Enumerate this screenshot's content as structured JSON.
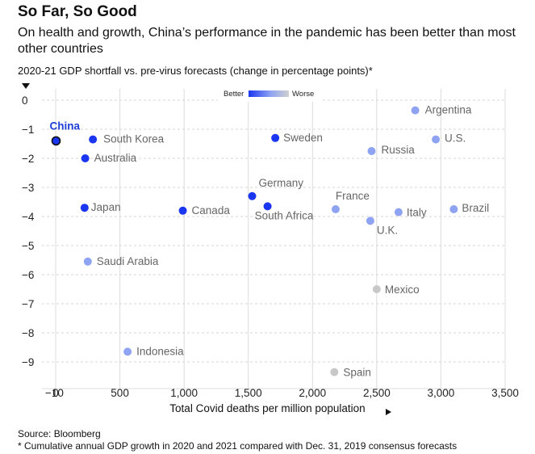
{
  "title": "So Far, So Good",
  "subtitle": "On health and growth, China’s performance in the pandemic has been better than most other countries",
  "source": "Source: Bloomberg",
  "footnote": "* Cumulative annual GDP growth in 2020 and 2021 compared with Dec. 31, 2019 consensus forecasts",
  "chart_data": {
    "type": "scatter",
    "title": "So Far, So Good",
    "ylabel": "2020-21 GDP shortfall vs. pre-virus forecasts (change in percentage points)*",
    "xlabel": "Total Covid deaths per million population",
    "xlim": [
      -10,
      3500
    ],
    "ylim": [
      -10,
      0.3
    ],
    "x_ticks": [
      -10,
      0,
      500,
      1000,
      1500,
      2000,
      2500,
      3000,
      3500
    ],
    "x_tick_labels": [
      "−10",
      "0",
      "500",
      "1,000",
      "1,500",
      "2,000",
      "2,500",
      "3,000",
      "3,500"
    ],
    "y_ticks": [
      0,
      -1,
      -2,
      -3,
      -4,
      -5,
      -6,
      -7,
      -8,
      -9
    ],
    "y_tick_labels": [
      "0",
      "−1",
      "−2",
      "−3",
      "−4",
      "−5",
      "−6",
      "−7",
      "−8",
      "−9"
    ],
    "grid": true,
    "legend": {
      "better_label": "Better",
      "worse_label": "Worse",
      "placement": "top-center"
    },
    "colors": {
      "better": "#1a36f0",
      "mid": "#8ea3f2",
      "worse": "#c8c8c8",
      "highlight_label": "#1f3fd6"
    },
    "points": [
      {
        "name": "China",
        "x": 3,
        "y": -1.4,
        "tier": "best",
        "highlight": true
      },
      {
        "name": "South Korea",
        "x": 290,
        "y": -1.35,
        "tier": "best"
      },
      {
        "name": "Australia",
        "x": 230,
        "y": -2.0,
        "tier": "best"
      },
      {
        "name": "Japan",
        "x": 225,
        "y": -3.7,
        "tier": "best"
      },
      {
        "name": "Canada",
        "x": 990,
        "y": -3.8,
        "tier": "best"
      },
      {
        "name": "Germany",
        "x": 1530,
        "y": -3.3,
        "tier": "best"
      },
      {
        "name": "South Africa",
        "x": 1650,
        "y": -3.65,
        "tier": "best"
      },
      {
        "name": "Sweden",
        "x": 1710,
        "y": -1.3,
        "tier": "best"
      },
      {
        "name": "Saudi Arabia",
        "x": 250,
        "y": -5.55,
        "tier": "mid"
      },
      {
        "name": "Indonesia",
        "x": 560,
        "y": -8.65,
        "tier": "mid"
      },
      {
        "name": "France",
        "x": 2180,
        "y": -3.75,
        "tier": "mid"
      },
      {
        "name": "U.K.",
        "x": 2450,
        "y": -4.15,
        "tier": "mid"
      },
      {
        "name": "Italy",
        "x": 2670,
        "y": -3.85,
        "tier": "mid"
      },
      {
        "name": "Brazil",
        "x": 3100,
        "y": -3.75,
        "tier": "mid"
      },
      {
        "name": "Russia",
        "x": 2460,
        "y": -1.75,
        "tier": "mid"
      },
      {
        "name": "U.S.",
        "x": 2960,
        "y": -1.35,
        "tier": "mid"
      },
      {
        "name": "Argentina",
        "x": 2800,
        "y": -0.35,
        "tier": "mid"
      },
      {
        "name": "Mexico",
        "x": 2500,
        "y": -6.5,
        "tier": "worst"
      },
      {
        "name": "Spain",
        "x": 2170,
        "y": -9.35,
        "tier": "worst"
      }
    ]
  }
}
